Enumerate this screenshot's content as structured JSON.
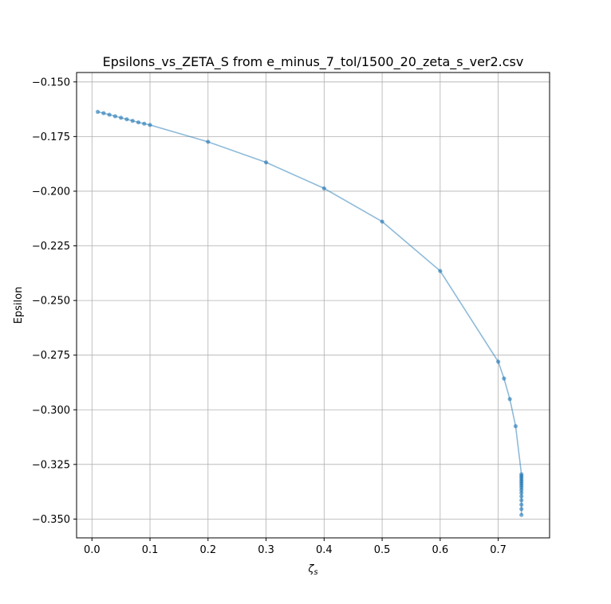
{
  "chart_data": {
    "type": "line",
    "title": "Epsilons_vs_ZETA_S from e_minus_7_tol/1500_20_zeta_s_ver2.csv",
    "xlabel": "ζs",
    "ylabel": "Epsilon",
    "xlim": [
      -0.0265,
      0.7885
    ],
    "ylim": [
      -0.3586,
      -0.1457
    ],
    "xticks": [
      0.0,
      0.1,
      0.2,
      0.3,
      0.4,
      0.5,
      0.6,
      0.7
    ],
    "xtick_labels": [
      "0.0",
      "0.1",
      "0.2",
      "0.3",
      "0.4",
      "0.5",
      "0.6",
      "0.7"
    ],
    "yticks": [
      -0.15,
      -0.175,
      -0.2,
      -0.225,
      -0.25,
      -0.275,
      -0.3,
      -0.325,
      -0.35
    ],
    "ytick_labels": [
      "−0.150",
      "−0.175",
      "−0.200",
      "−0.225",
      "−0.250",
      "−0.275",
      "−0.300",
      "−0.325",
      "−0.350"
    ],
    "grid": true,
    "color": "#1f77b4",
    "series": [
      {
        "x": [
          0.01,
          0.02,
          0.03,
          0.04,
          0.05,
          0.06,
          0.07,
          0.08,
          0.09,
          0.1,
          0.2,
          0.3,
          0.4,
          0.5,
          0.6,
          0.7,
          0.71,
          0.72,
          0.73,
          0.74,
          0.74,
          0.74,
          0.74,
          0.74,
          0.74,
          0.74,
          0.74,
          0.74,
          0.74,
          0.74,
          0.74,
          0.74,
          0.74,
          0.74
        ],
        "y": [
          -0.1637,
          -0.1643,
          -0.165,
          -0.1657,
          -0.1664,
          -0.1671,
          -0.1678,
          -0.1685,
          -0.1691,
          -0.1697,
          -0.1774,
          -0.1868,
          -0.1987,
          -0.2139,
          -0.2365,
          -0.278,
          -0.2857,
          -0.2951,
          -0.3075,
          -0.3295,
          -0.3303,
          -0.3311,
          -0.332,
          -0.3328,
          -0.3337,
          -0.3346,
          -0.3356,
          -0.3367,
          -0.338,
          -0.3396,
          -0.3414,
          -0.3434,
          -0.3454,
          -0.3481
        ]
      }
    ]
  }
}
